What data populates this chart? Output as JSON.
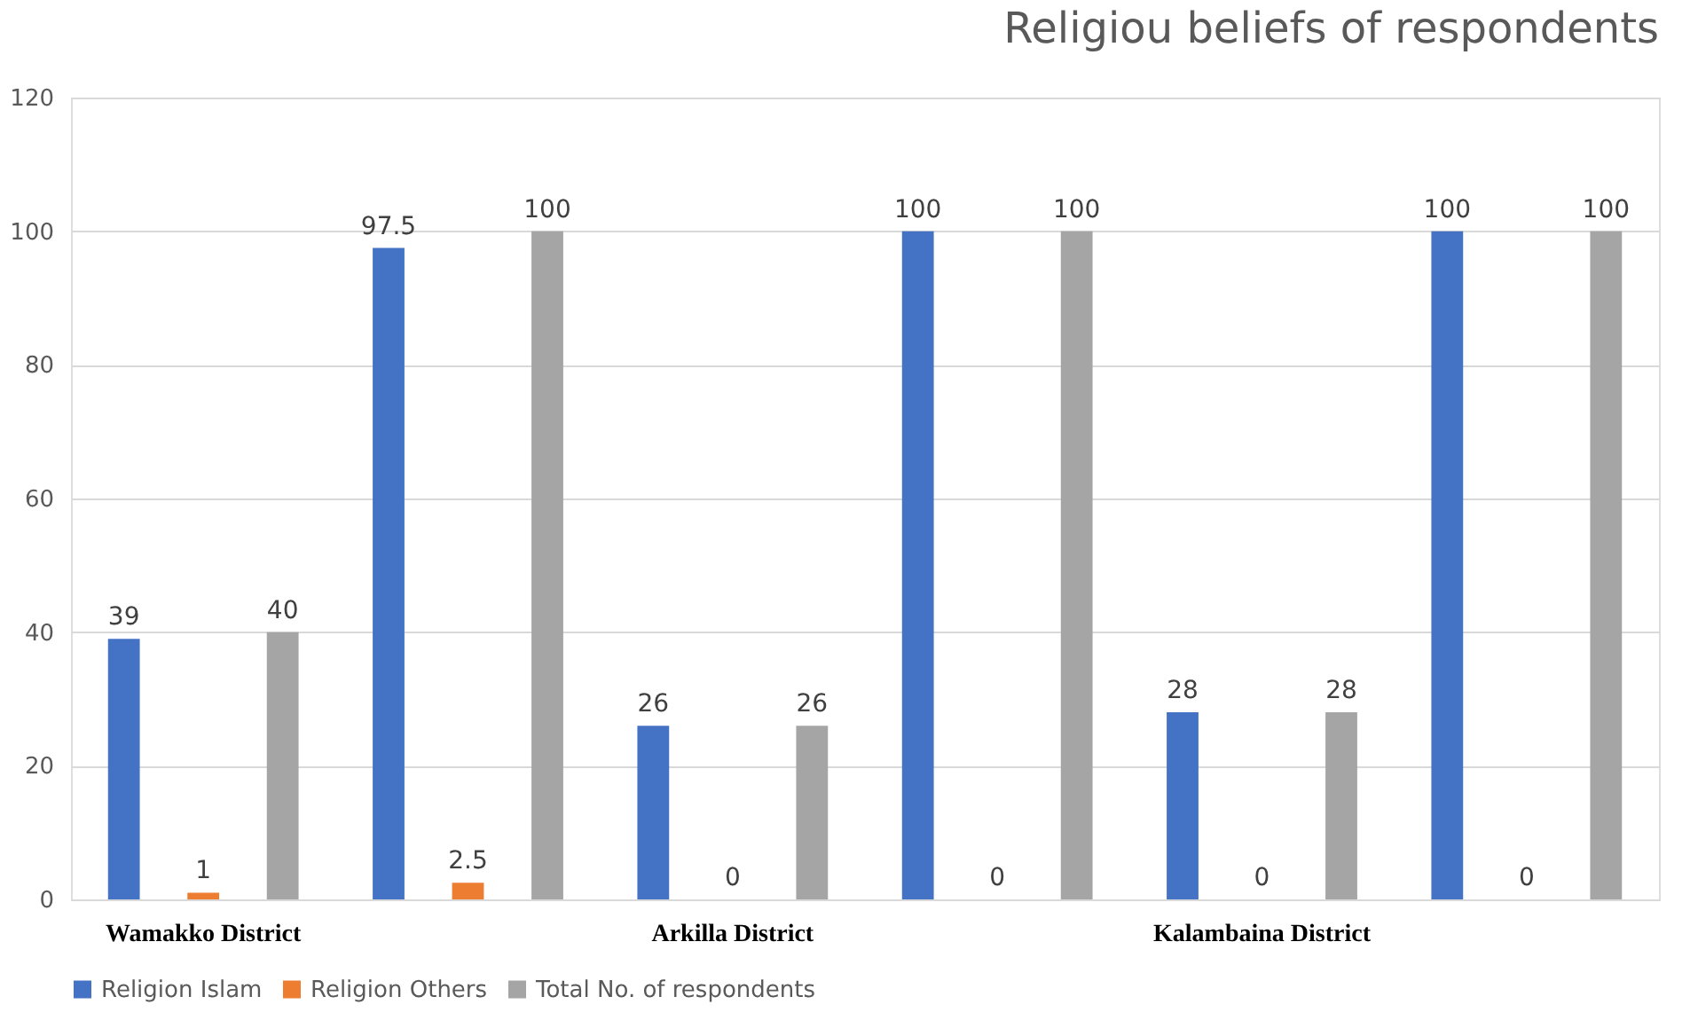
{
  "chart_data": {
    "type": "bar",
    "title": "Religiou beliefs of respondents",
    "categories": [
      "Wamakko District",
      null,
      "Arkilla District",
      null,
      "Kalambaina District",
      null
    ],
    "series": [
      {
        "name": "Religion Islam",
        "color": "#4472c4",
        "values": [
          39,
          97.5,
          26,
          100,
          28,
          100
        ]
      },
      {
        "name": "Religion Others",
        "color": "#ed7d31",
        "values": [
          1,
          2.5,
          0,
          0,
          0,
          0
        ]
      },
      {
        "name": "Total No. of respondents",
        "color": "#a5a5a5",
        "values": [
          40,
          100,
          26,
          100,
          28,
          100
        ]
      }
    ],
    "ylim": [
      0,
      120
    ],
    "yticks": [
      0,
      20,
      40,
      60,
      80,
      100,
      120
    ],
    "grid": "y",
    "legend": "bottom",
    "data_labels": true
  }
}
